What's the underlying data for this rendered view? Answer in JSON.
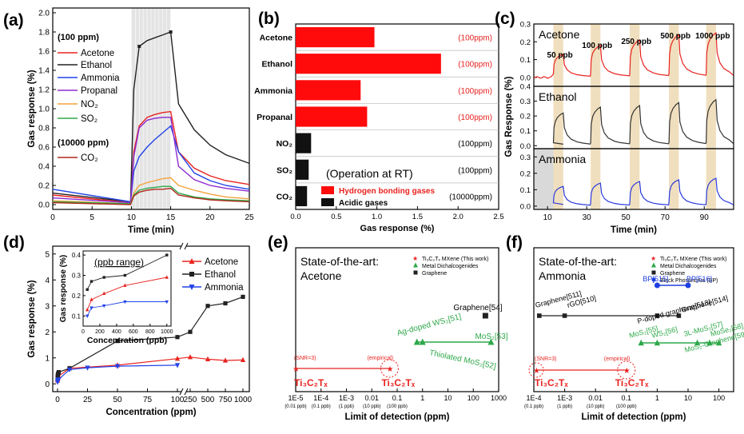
{
  "chart_data": [
    {
      "panel": "(a)",
      "type": "line",
      "xlabel": "Time (min)",
      "ylabel": "Gas response (%)",
      "xlim": [
        0,
        25
      ],
      "ylim": [
        -0.05,
        2.05
      ],
      "xticks": [
        "0",
        "5",
        "10",
        "15",
        "20",
        "25"
      ],
      "yticks": [
        "0.0",
        "0.2",
        "0.4",
        "0.6",
        "0.8",
        "1.0",
        "1.2",
        "1.4",
        "1.6",
        "1.8",
        "2.0"
      ],
      "exposure_window": [
        10,
        15
      ],
      "legend_heading_1": "(100 ppm)",
      "legend_heading_2": "(10000 ppm)",
      "series": [
        {
          "name": "Acetone",
          "color": "#e8231f",
          "x": [
            0,
            9.9,
            10.3,
            11,
            12,
            13,
            14,
            15,
            16,
            18,
            20,
            22,
            25
          ],
          "y": [
            0.1,
            0.02,
            0.55,
            0.82,
            0.91,
            0.94,
            0.96,
            0.97,
            0.55,
            0.38,
            0.3,
            0.25,
            0.21
          ]
        },
        {
          "name": "Ethanol",
          "color": "#222222",
          "x": [
            0,
            9.9,
            10.3,
            11,
            12,
            13,
            14,
            15,
            16,
            18,
            20,
            22,
            25
          ],
          "y": [
            0.12,
            0.03,
            1.2,
            1.65,
            1.71,
            1.74,
            1.77,
            1.8,
            1.05,
            0.78,
            0.62,
            0.52,
            0.43
          ]
        },
        {
          "name": "Ammonia",
          "color": "#2343e8",
          "x": [
            0,
            9.9,
            10.3,
            11,
            12,
            13,
            14,
            15,
            16,
            18,
            20,
            22,
            25
          ],
          "y": [
            0.16,
            0.03,
            0.35,
            0.5,
            0.6,
            0.68,
            0.75,
            0.82,
            0.55,
            0.33,
            0.25,
            0.2,
            0.16
          ]
        },
        {
          "name": "Propanal",
          "color": "#8e2bd0",
          "x": [
            0,
            9.9,
            10.3,
            11,
            12,
            13,
            14,
            15,
            16,
            18,
            20,
            22,
            25
          ],
          "y": [
            0.07,
            0.02,
            0.5,
            0.8,
            0.88,
            0.9,
            0.91,
            0.91,
            0.4,
            0.26,
            0.2,
            0.17,
            0.14
          ]
        },
        {
          "name": "NO₂",
          "color": "#f4a23c",
          "x": [
            0,
            9.9,
            10.3,
            11,
            12,
            13,
            14,
            15,
            16,
            18,
            20,
            22,
            25
          ],
          "y": [
            0.04,
            0.01,
            0.12,
            0.2,
            0.23,
            0.25,
            0.27,
            0.28,
            0.2,
            0.15,
            0.11,
            0.08,
            0.06
          ]
        },
        {
          "name": "SO₂",
          "color": "#2ea84a",
          "x": [
            0,
            9.9,
            10.3,
            11,
            12,
            13,
            14,
            15,
            16,
            18,
            20,
            22,
            25
          ],
          "y": [
            0.03,
            0.01,
            0.1,
            0.15,
            0.17,
            0.18,
            0.19,
            0.19,
            0.12,
            0.08,
            0.06,
            0.05,
            0.04
          ]
        },
        {
          "name": "CO₂",
          "color": "#b1281c",
          "x": [
            0,
            9.9,
            10.3,
            11,
            12,
            13,
            14,
            15,
            16,
            18,
            20,
            22,
            25
          ],
          "y": [
            0.02,
            0.0,
            0.09,
            0.13,
            0.15,
            0.16,
            0.16,
            0.17,
            0.1,
            0.07,
            0.05,
            0.04,
            0.03
          ]
        }
      ]
    },
    {
      "panel": "(b)",
      "type": "bar",
      "orientation": "horizontal",
      "xlabel": "Gas response (%)",
      "xlim": [
        0,
        2.5
      ],
      "xticks": [
        "0.0",
        "0.5",
        "1.0",
        "1.5",
        "2.0",
        "2.5"
      ],
      "categories": [
        "Acetone",
        "Ethanol",
        "Ammonia",
        "Propanal",
        "NO₂",
        "SO₂",
        "CO₂"
      ],
      "values": [
        0.97,
        1.79,
        0.8,
        0.88,
        0.19,
        0.16,
        0.14
      ],
      "concentrations": [
        "(100ppm)",
        "(100ppm)",
        "(100ppm)",
        "(100ppm)",
        "(100ppm)",
        "(100ppm)",
        "(10000ppm)"
      ],
      "groups": [
        "hb",
        "hb",
        "hb",
        "hb",
        "acid",
        "acid",
        "acid"
      ],
      "group_colors": {
        "hb": "#ff0b0b",
        "acid": "#111111"
      },
      "annotation": "(Operation at RT)",
      "legend": [
        "Hydrogen bonding gases",
        "Acidic gases"
      ]
    },
    {
      "panel": "(c)",
      "type": "line",
      "xlabel": "Time (min)",
      "ylabel": "Gas Response (%)",
      "xlim": [
        3,
        105
      ],
      "xticks": [
        "10",
        "30",
        "50",
        "70",
        "90"
      ],
      "pulse_windows": [
        [
          13,
          18
        ],
        [
          32,
          37
        ],
        [
          52,
          57
        ],
        [
          72,
          77
        ],
        [
          91,
          96
        ]
      ],
      "pulse_labels": [
        "50 ppb",
        "100 ppb",
        "250 ppb",
        "500 ppb",
        "1000 ppb"
      ],
      "series": [
        {
          "name": "Acetone",
          "color": "#e8231f",
          "ylim": [
            -0.05,
            0.3
          ],
          "yticks": [
            "0.0",
            "0.1",
            "0.2",
            "0.3"
          ],
          "peaks": [
            0.13,
            0.18,
            0.21,
            0.24,
            0.25
          ]
        },
        {
          "name": "Ethanol",
          "color": "#333333",
          "ylim": [
            -0.02,
            0.4
          ],
          "yticks": [
            "0.0",
            "0.1",
            "0.2",
            "0.3",
            "0.4"
          ],
          "peaks": [
            0.22,
            0.26,
            0.27,
            0.29,
            0.31
          ]
        },
        {
          "name": "Ammonia",
          "color": "#2a3bdc",
          "ylim": [
            -0.02,
            0.35
          ],
          "yticks": [
            "0.0",
            "0.1",
            "0.2",
            "0.3"
          ],
          "peaks": [
            0.12,
            0.14,
            0.15,
            0.16,
            0.17
          ]
        }
      ]
    },
    {
      "panel": "(d)",
      "type": "line",
      "xlabel": "Concentration (ppm)",
      "ylabel": "Gas response (%)",
      "xticks": [
        "0",
        "25",
        "50",
        "75",
        "100",
        "250",
        "500",
        "750",
        "1000"
      ],
      "yticks": [
        "0",
        "1",
        "2",
        "3",
        "4",
        "5"
      ],
      "ylim": [
        -0.3,
        5.3
      ],
      "series": [
        {
          "name": "Acetone",
          "color": "#e8231f",
          "marker": "triangle-up",
          "x": [
            0.05,
            0.1,
            0.25,
            0.5,
            1,
            10,
            50,
            100,
            250,
            500,
            750,
            1000
          ],
          "y": [
            0.13,
            0.18,
            0.2,
            0.25,
            0.3,
            0.6,
            0.72,
            0.97,
            1.03,
            0.95,
            0.9,
            0.92
          ]
        },
        {
          "name": "Ethanol",
          "color": "#222222",
          "marker": "square",
          "x": [
            0.05,
            0.1,
            0.25,
            0.5,
            1,
            10,
            50,
            100,
            250,
            500,
            750,
            1000
          ],
          "y": [
            0.26,
            0.29,
            0.35,
            0.4,
            0.45,
            0.6,
            1.65,
            1.8,
            2.0,
            3.0,
            3.1,
            3.35
          ]
        },
        {
          "name": "Ammonia",
          "color": "#2343e8",
          "marker": "triangle-down",
          "x": [
            0.05,
            0.1,
            0.25,
            0.5,
            1,
            10,
            25,
            50,
            100
          ],
          "y": [
            0.07,
            0.1,
            0.13,
            0.15,
            0.17,
            0.55,
            0.62,
            0.68,
            0.72
          ]
        }
      ],
      "inset": {
        "title": "(ppb range)",
        "xlabel": "Concentration (ppb)",
        "ylabel": "Gas response (%)",
        "xlim": [
          0,
          1050
        ],
        "ylim": [
          0.05,
          0.42
        ],
        "xticks": [
          "0",
          "200",
          "400",
          "600",
          "800",
          "1000"
        ],
        "yticks": [
          "0.1",
          "0.2",
          "0.3",
          "0.4"
        ],
        "x": [
          50,
          100,
          250,
          500,
          1000
        ],
        "acetone": [
          0.13,
          0.18,
          0.21,
          0.25,
          0.29
        ],
        "ethanol": [
          0.23,
          0.27,
          0.29,
          0.3,
          0.4
        ],
        "ammonia": [
          0.1,
          0.14,
          0.15,
          0.17,
          0.17
        ]
      }
    },
    {
      "panel": "(e)",
      "type": "scatter",
      "xscale": "log",
      "title_line1": "State-of-the-art:",
      "title_line2": "Acetone",
      "xlabel": "Limit of detection (ppm)",
      "xlim": [
        1e-05,
        1000
      ],
      "xticks": [
        "1E-5",
        "1E-4",
        "1E-3",
        "0.01",
        "0.1",
        "1",
        "10",
        "100",
        "1000"
      ],
      "xsubticks": [
        "(0.01 ppb)",
        "(0.1 ppb)",
        "(1 ppb)",
        "(10 ppb)",
        "(100 ppb)"
      ],
      "legend": [
        "Ti₃C₂Tₓ MXene (This work)",
        "Metal Dichalcogenides",
        "Graphene"
      ],
      "mxene": {
        "snr": 1e-05,
        "empirical": 0.05,
        "label_snr": "(SNR=3)",
        "label_emp": "(empirical)",
        "name": "Ti₃C₂Tₓ"
      },
      "dichalcogenides": [
        {
          "label": "Ag-doped WS₂",
          "ref": "[51]",
          "x": 0.6
        },
        {
          "label": "Thiolated MoS₂",
          "ref": "[52]",
          "x": 1.0
        },
        {
          "label": "MoS₂",
          "ref": "[53]",
          "x": 500
        }
      ],
      "graphene": [
        {
          "label": "Graphene",
          "ref": "[54]",
          "x": 300
        }
      ]
    },
    {
      "panel": "(f)",
      "type": "scatter",
      "xscale": "log",
      "title_line1": "State-of-the-art:",
      "title_line2": "Ammonia",
      "xlabel": "Limit of detection (ppm)",
      "xlim": [
        0.0001,
        300
      ],
      "xticks": [
        "1E-4",
        "1E-3",
        "0.01",
        "0.1",
        "1",
        "10",
        "100"
      ],
      "xsubticks": [
        "(0.1 ppb)",
        "(1 ppb)",
        "(10 ppb)",
        "(100 ppb)"
      ],
      "legend": [
        "Ti₃C₂Tₓ MXene (This work)",
        "Metal Dichalcogenides",
        "Graphene",
        "Black Phosphorus (BP)"
      ],
      "mxene": {
        "snr": 0.00012,
        "empirical": 0.1,
        "label_snr": "(SNR=3)",
        "label_emp": "(empirical)",
        "name": "Ti₃C₂Tₓ"
      },
      "bp": [
        {
          "label": "BP",
          "ref": "[515]",
          "x": 1
        },
        {
          "label": "BP",
          "ref": "[516]",
          "x": 10
        }
      ],
      "graphene": [
        {
          "label": "Graphene",
          "ref": "[511]",
          "x": 0.00015
        },
        {
          "label": "rGO",
          "ref": "[510]",
          "x": 0.001
        },
        {
          "label": "P-doped graphene",
          "ref": "[513]",
          "x": 1
        },
        {
          "label": "Graphene",
          "ref": "[514]",
          "x": 5
        }
      ],
      "dichalcogenides": [
        {
          "label": "MoS₂",
          "ref": "[55]",
          "x": 0.3
        },
        {
          "label": "WS₂",
          "ref": "[56]",
          "x": 1
        },
        {
          "label": "3L-MoS₂",
          "ref": "[57]",
          "x": 20
        },
        {
          "label": "MoSe₂",
          "ref": "[58]",
          "x": 50
        },
        {
          "label": "MoS₂-Graphene",
          "ref": "[59]",
          "x": 100
        }
      ]
    }
  ]
}
